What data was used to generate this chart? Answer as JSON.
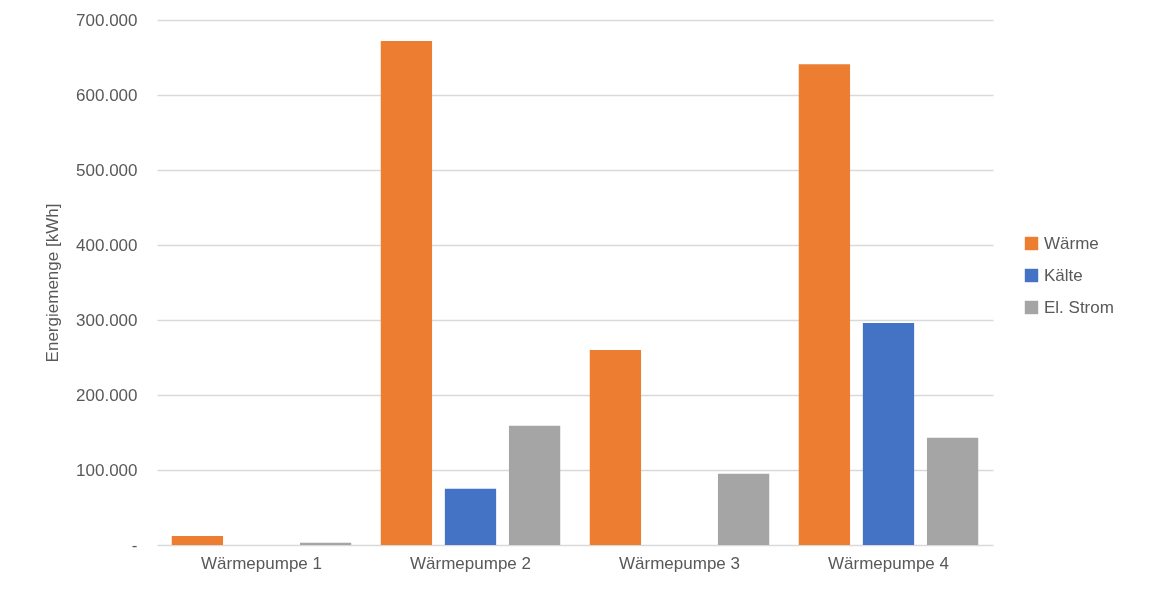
{
  "chart_data": {
    "type": "bar",
    "ylabel": "Energiemenge [kWh]",
    "categories": [
      "Wärmepumpe 1",
      "Wärmepumpe 2",
      "Wärmepumpe 3",
      "Wärmepumpe 4"
    ],
    "series": [
      {
        "name": "Wärme",
        "color": "#ed7d31",
        "values": [
          12000,
          672000,
          260000,
          641000
        ]
      },
      {
        "name": "Kälte",
        "color": "#4472c4",
        "values": [
          null,
          75000,
          null,
          296000
        ]
      },
      {
        "name": "El. Strom",
        "color": "#a5a5a5",
        "values": [
          3000,
          159000,
          95000,
          143000
        ]
      }
    ],
    "ylim": [
      0,
      700000
    ],
    "yticks": [
      {
        "value": 0,
        "label": "-"
      },
      {
        "value": 100000,
        "label": "100.000"
      },
      {
        "value": 200000,
        "label": "200.000"
      },
      {
        "value": 300000,
        "label": "300.000"
      },
      {
        "value": 400000,
        "label": "400.000"
      },
      {
        "value": 500000,
        "label": "500.000"
      },
      {
        "value": 600000,
        "label": "600.000"
      },
      {
        "value": 700000,
        "label": "700.000"
      }
    ],
    "grid": "y",
    "legend": "right"
  }
}
